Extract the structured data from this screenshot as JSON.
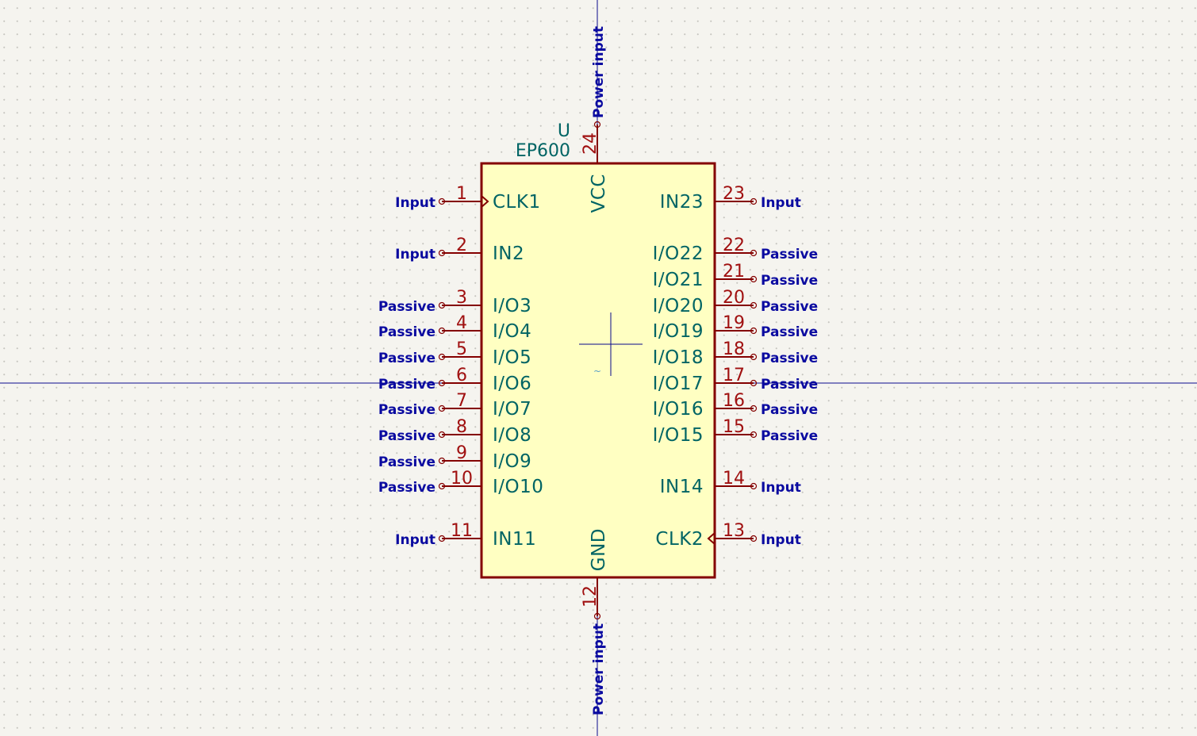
{
  "symbol": {
    "reference": "U",
    "value": "EP600",
    "stray_mark": "~"
  },
  "colors": {
    "background": "#f5f4ef",
    "body_fill": "#ffffc2",
    "body_outline": "#840000",
    "pin_line": "#840000",
    "pin_number": "#a01010",
    "pin_name": "#006464",
    "electrical_type": "#0a0aa0",
    "axis": "#0a0a8c"
  },
  "pins": {
    "p1": {
      "number": "1",
      "name": "CLK1",
      "type": "Input"
    },
    "p2": {
      "number": "2",
      "name": "IN2",
      "type": "Input"
    },
    "p3": {
      "number": "3",
      "name": "I/O3",
      "type": "Passive"
    },
    "p4": {
      "number": "4",
      "name": "I/O4",
      "type": "Passive"
    },
    "p5": {
      "number": "5",
      "name": "I/O5",
      "type": "Passive"
    },
    "p6": {
      "number": "6",
      "name": "I/O6",
      "type": "Passive"
    },
    "p7": {
      "number": "7",
      "name": "I/O7",
      "type": "Passive"
    },
    "p8": {
      "number": "8",
      "name": "I/O8",
      "type": "Passive"
    },
    "p9": {
      "number": "9",
      "name": "I/O9",
      "type": "Passive"
    },
    "p10": {
      "number": "10",
      "name": "I/O10",
      "type": "Passive"
    },
    "p11": {
      "number": "11",
      "name": "IN11",
      "type": "Input"
    },
    "p12": {
      "number": "12",
      "name": "GND",
      "type": "Power input"
    },
    "p13": {
      "number": "13",
      "name": "CLK2",
      "type": "Input"
    },
    "p14": {
      "number": "14",
      "name": "IN14",
      "type": "Input"
    },
    "p15": {
      "number": "15",
      "name": "I/O15",
      "type": "Passive"
    },
    "p16": {
      "number": "16",
      "name": "I/O16",
      "type": "Passive"
    },
    "p17": {
      "number": "17",
      "name": "I/O17",
      "type": "Passive"
    },
    "p18": {
      "number": "18",
      "name": "I/O18",
      "type": "Passive"
    },
    "p19": {
      "number": "19",
      "name": "I/O19",
      "type": "Passive"
    },
    "p20": {
      "number": "20",
      "name": "I/O20",
      "type": "Passive"
    },
    "p21": {
      "number": "21",
      "name": "I/O21",
      "type": "Passive"
    },
    "p22": {
      "number": "22",
      "name": "I/O22",
      "type": "Passive"
    },
    "p23": {
      "number": "23",
      "name": "IN23",
      "type": "Input"
    },
    "p24": {
      "number": "24",
      "name": "VCC",
      "type": "Power input"
    }
  }
}
